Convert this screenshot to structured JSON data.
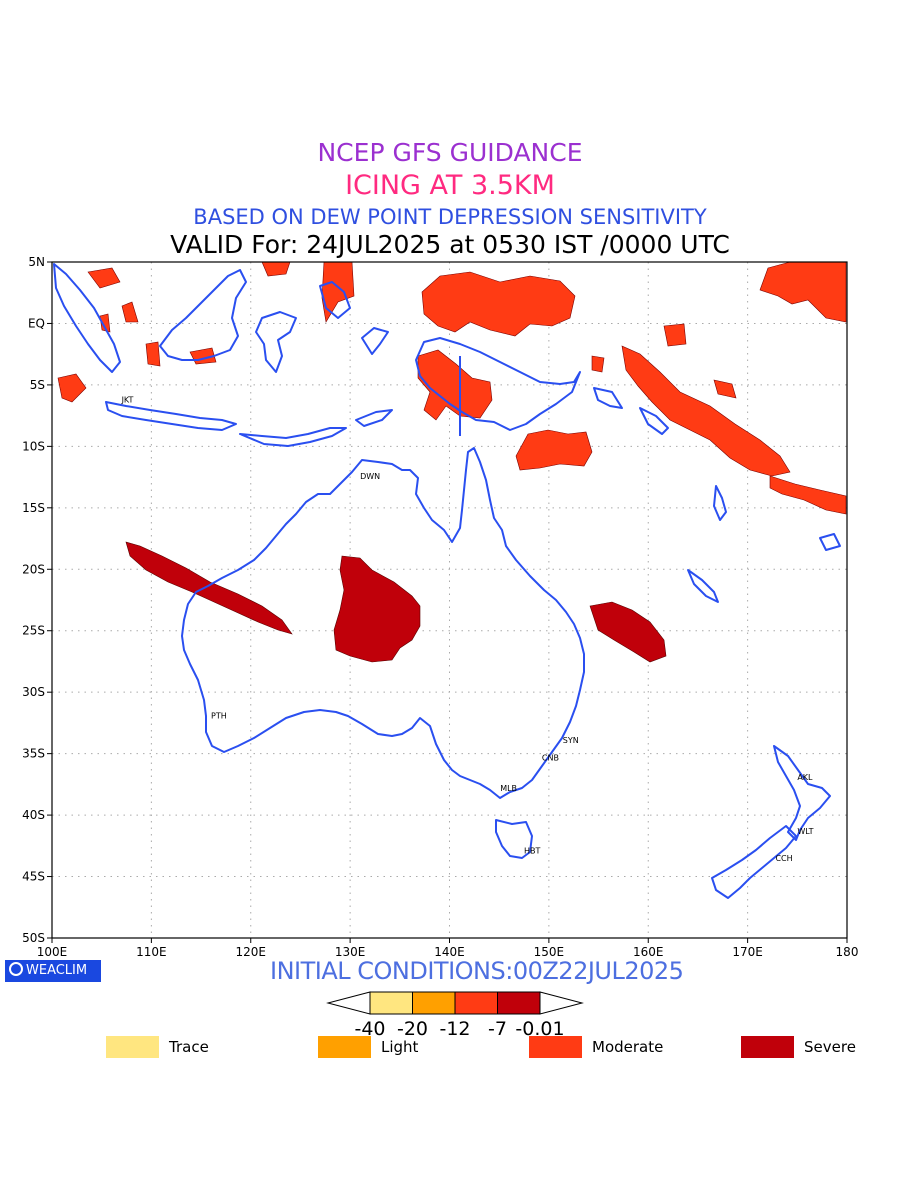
{
  "header": {
    "line1": "NCEP GFS GUIDANCE",
    "line2": "ICING AT 3.5KM",
    "line3": "BASED ON DEW POINT DEPRESSION SENSITIVITY",
    "line4": "VALID For: 24JUL2025 at 0530 IST /0000 UTC",
    "colors": {
      "line1": "#9b30d0",
      "line2": "#ff2a80",
      "line3": "#2f4fe0",
      "line4": "#000000"
    }
  },
  "map": {
    "lon_range": [
      100,
      180
    ],
    "lat_range": [
      5,
      -50
    ],
    "lon_labels": [
      "100E",
      "110E",
      "120E",
      "130E",
      "140E",
      "150E",
      "160E",
      "170E",
      "180"
    ],
    "lat_labels": [
      "5N",
      "EQ",
      "5S",
      "10S",
      "15S",
      "20S",
      "25S",
      "30S",
      "35S",
      "40S",
      "45S",
      "50S"
    ],
    "stations": [
      {
        "code": "JKT",
        "lon": 106.8,
        "lat": -6.2
      },
      {
        "code": "DWN",
        "lon": 130.8,
        "lat": -12.4
      },
      {
        "code": "PTH",
        "lon": 115.8,
        "lat": -31.9
      },
      {
        "code": "SYN",
        "lon": 151.2,
        "lat": -33.9
      },
      {
        "code": "CNB",
        "lon": 149.1,
        "lat": -35.3
      },
      {
        "code": "MLB",
        "lon": 144.9,
        "lat": -37.8
      },
      {
        "code": "HBT",
        "lon": 147.3,
        "lat": -42.9
      },
      {
        "code": "AKL",
        "lon": 174.8,
        "lat": -36.9
      },
      {
        "code": "WLT",
        "lon": 174.8,
        "lat": -41.3
      },
      {
        "code": "CCH",
        "lon": 172.6,
        "lat": -43.5
      }
    ],
    "colors": {
      "coast": "#2a4ff0",
      "moderate": "#ff3b14",
      "severe": "#c0000a",
      "grid": "#aaaaaa"
    }
  },
  "footer": {
    "logo": "WEACLIM",
    "initial_conditions": "INITIAL CONDITIONS:00Z22JUL2025"
  },
  "colorbar": {
    "ticks": [
      "-40",
      "-20",
      "-12",
      "-7",
      "-0.01"
    ],
    "fills": [
      "#ffe680",
      "#ffa000",
      "#ff3b14",
      "#c0000a"
    ]
  },
  "legend": [
    {
      "label": "Trace",
      "color": "#ffe680"
    },
    {
      "label": "Light",
      "color": "#ffa000"
    },
    {
      "label": "Moderate",
      "color": "#ff3b14"
    },
    {
      "label": "Severe",
      "color": "#c0000a"
    }
  ]
}
